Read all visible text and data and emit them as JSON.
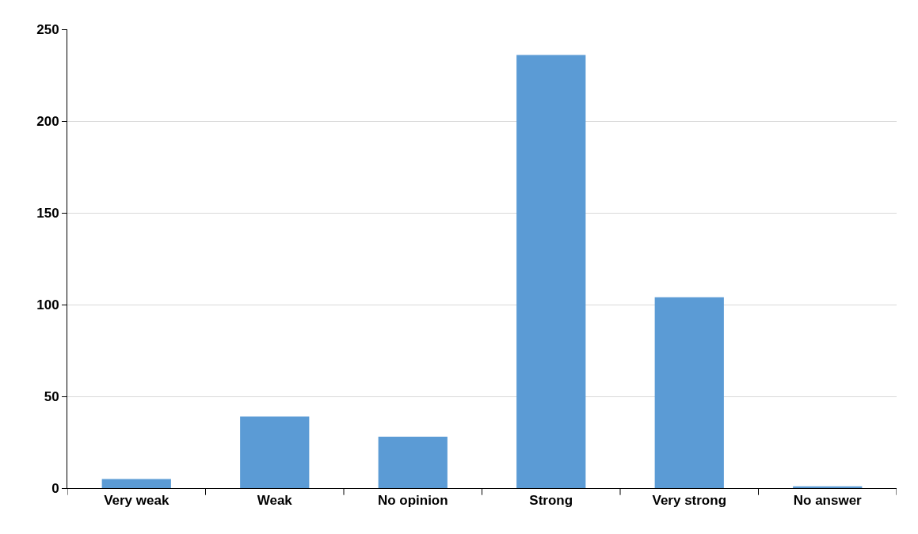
{
  "chart_data": {
    "type": "bar",
    "categories": [
      "Very weak",
      "Weak",
      "No opinion",
      "Strong",
      "Very strong",
      "No answer"
    ],
    "values": [
      5,
      39,
      28,
      236,
      104,
      1
    ],
    "color": "#5b9bd5",
    "ylim": [
      0,
      250
    ],
    "yticks": [
      0,
      50,
      100,
      150,
      200,
      250
    ],
    "grid": "y",
    "legend": false
  }
}
